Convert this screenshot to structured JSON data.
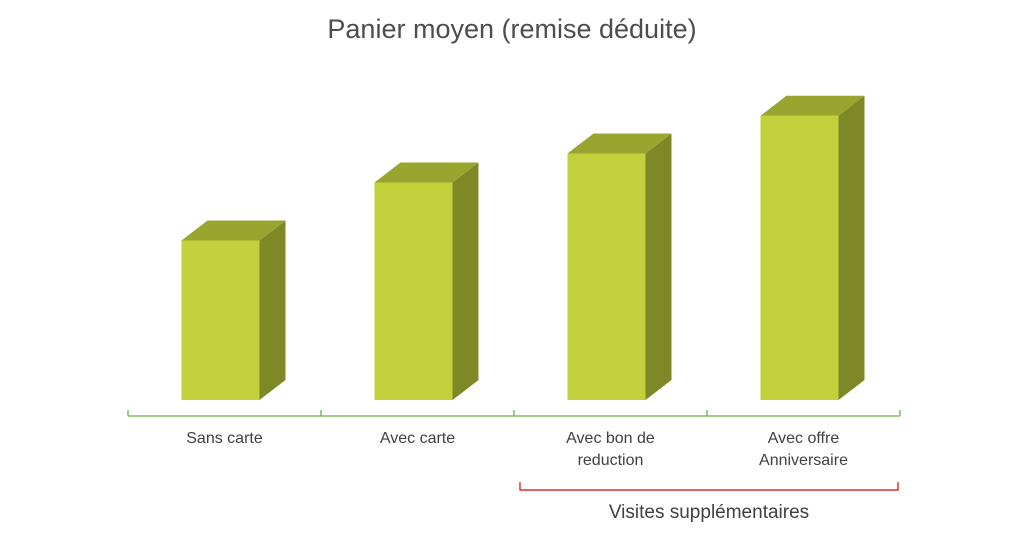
{
  "chart_data": {
    "type": "bar",
    "title": "Panier moyen (remise déduite)",
    "categories": [
      [
        "Sans carte"
      ],
      [
        "Avec carte"
      ],
      [
        "Avec bon de",
        "reduction"
      ],
      [
        "Avec offre",
        "Anniversaire"
      ]
    ],
    "values": [
      0.55,
      0.75,
      0.85,
      0.98
    ],
    "value_scale": "relative (no axis shown)",
    "ylim": [
      0,
      1
    ],
    "grid": false,
    "legend": "none",
    "three_d": true,
    "group_bracket": {
      "label": "Visites supplémentaires",
      "category_indices": [
        2,
        3
      ]
    },
    "colors": {
      "bar_front": "#c2d13b",
      "bar_top": "#98a52e",
      "bar_side": "#7f8826",
      "axis": "#70ad47",
      "bracket": "#e02a2a",
      "text": "#404040"
    }
  }
}
